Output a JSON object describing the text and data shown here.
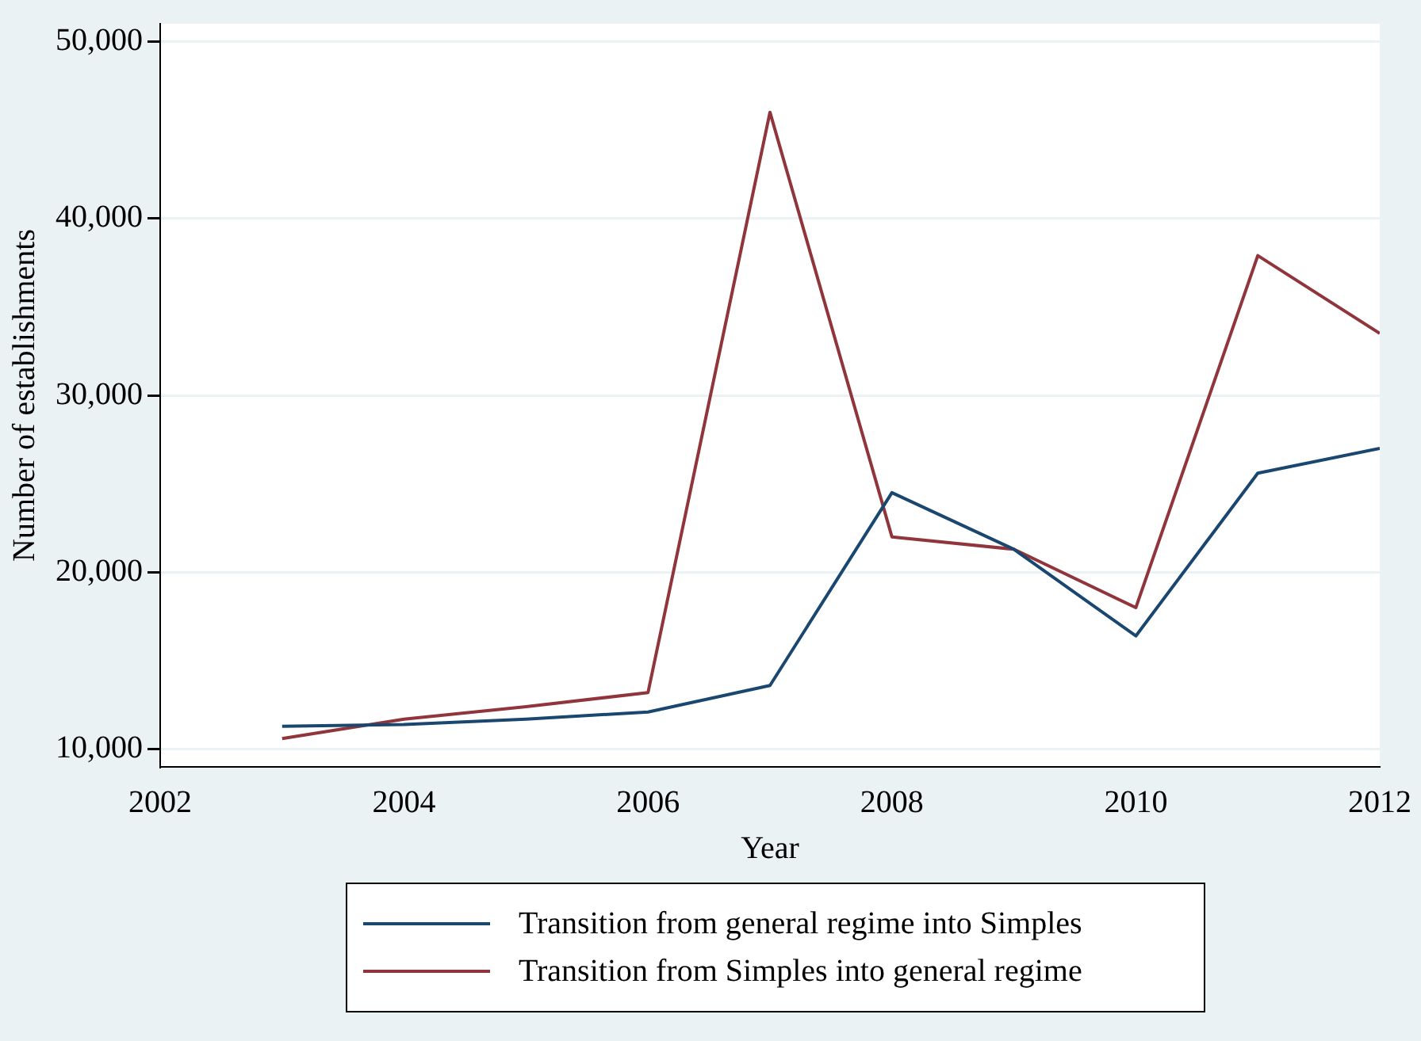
{
  "chart_data": {
    "type": "line",
    "xlabel": "Year",
    "ylabel": "Number of establishments",
    "x": [
      2003,
      2004,
      2005,
      2006,
      2007,
      2008,
      2009,
      2010,
      2011,
      2012
    ],
    "series": [
      {
        "name": "Transition from general regime into Simples",
        "color": "#1a476f",
        "values": [
          11300,
          11400,
          11700,
          12100,
          13600,
          24500,
          21300,
          16400,
          25600,
          27000
        ]
      },
      {
        "name": "Transition from Simples into general regime",
        "color": "#90353b",
        "values": [
          10600,
          11700,
          12400,
          13200,
          46000,
          22000,
          21300,
          18000,
          37900,
          33500
        ]
      }
    ],
    "xlim": [
      2002,
      2012
    ],
    "xticks": [
      2002,
      2004,
      2006,
      2008,
      2010,
      2012
    ],
    "ylim": [
      9000,
      51000
    ],
    "yticks": [
      {
        "value": 10000,
        "label": "10,000"
      },
      {
        "value": 20000,
        "label": "20,000"
      },
      {
        "value": 30000,
        "label": "30,000"
      },
      {
        "value": 40000,
        "label": "40,000"
      },
      {
        "value": 50000,
        "label": "50,000"
      }
    ],
    "grid": "y",
    "legend": "bottom",
    "marker": "none",
    "line_style": "solid"
  }
}
